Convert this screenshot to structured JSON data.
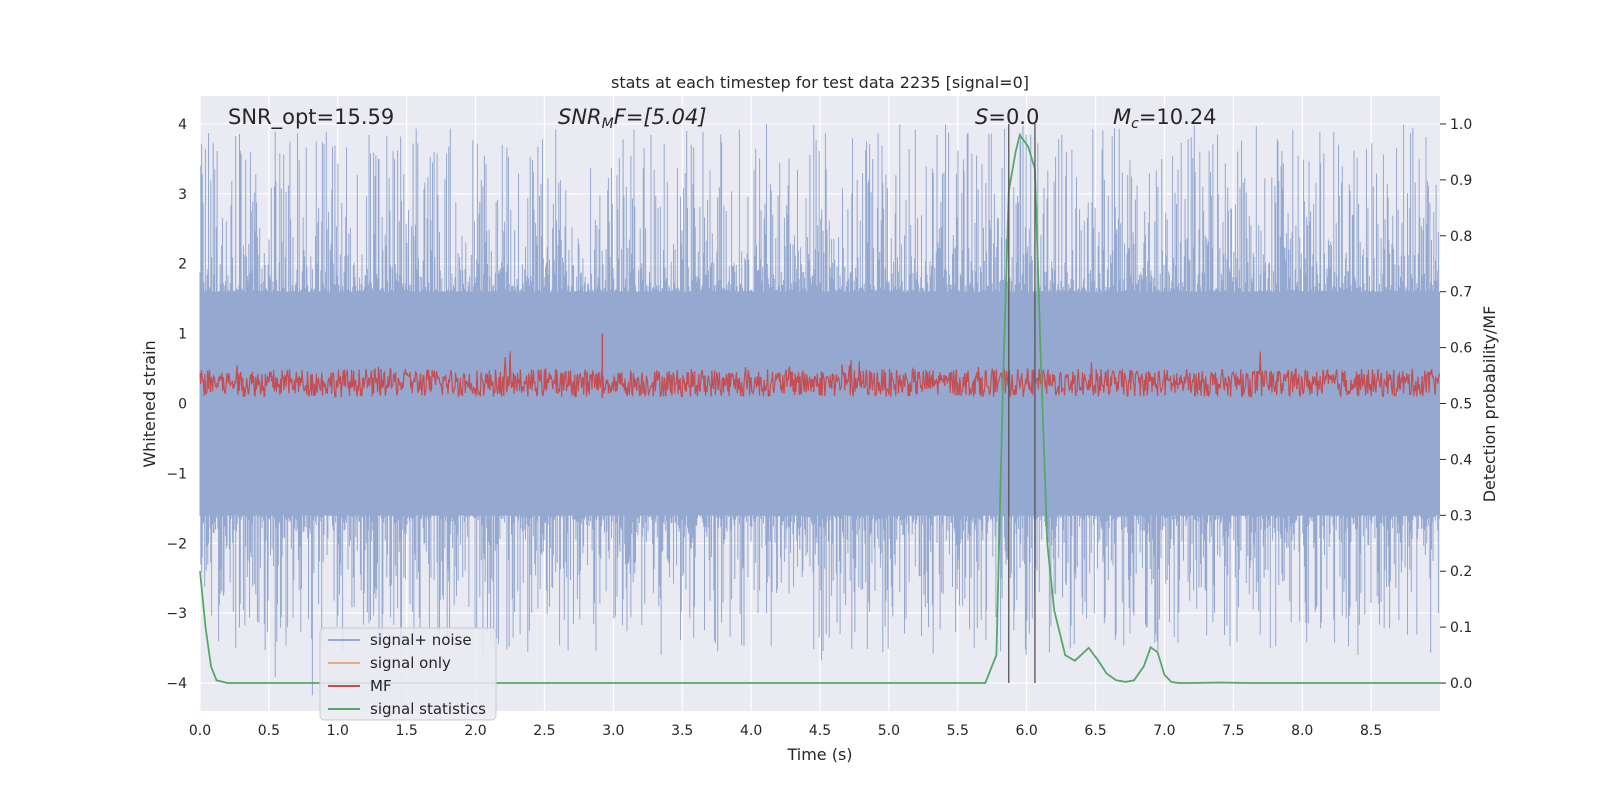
{
  "chart_data": {
    "type": "line",
    "title": "stats at each timestep for test data 2235 [signal=0]",
    "xlabel": "Time (s)",
    "ylabel_left": "Whitened strain",
    "ylabel_right": "Detection probability/MF",
    "xlim": [
      0,
      9.0
    ],
    "ylim_left": [
      -4.4,
      4.4
    ],
    "ylim_right": [
      -0.05,
      1.05
    ],
    "x_ticks": [
      "0.0",
      "0.5",
      "1.0",
      "1.5",
      "2.0",
      "2.5",
      "3.0",
      "3.5",
      "4.0",
      "4.5",
      "5.0",
      "5.5",
      "6.0",
      "6.5",
      "7.0",
      "7.5",
      "8.0",
      "8.5"
    ],
    "x_tick_values": [
      0,
      0.5,
      1,
      1.5,
      2,
      2.5,
      3,
      3.5,
      4,
      4.5,
      5,
      5.5,
      6,
      6.5,
      7,
      7.5,
      8,
      8.5
    ],
    "y_left_ticks": [
      "4",
      "3",
      "2",
      "1",
      "0",
      "−1",
      "−2",
      "−3",
      "−4"
    ],
    "y_left_tick_values": [
      4,
      3,
      2,
      1,
      0,
      -1,
      -2,
      -3,
      -4
    ],
    "y_right_ticks": [
      "1.0",
      "0.9",
      "0.8",
      "0.7",
      "0.6",
      "0.5",
      "0.4",
      "0.3",
      "0.2",
      "0.1",
      "0.0"
    ],
    "y_right_tick_values": [
      1.0,
      0.9,
      0.8,
      0.7,
      0.6,
      0.5,
      0.4,
      0.3,
      0.2,
      0.1,
      0.0
    ],
    "annotations": {
      "snr_opt": "SNR_opt=15.59",
      "snr_mf_base": "SNR",
      "snr_mf_sub": "M",
      "snr_mf_rest": "F=[5.04]",
      "s_italic": "S",
      "s_rest": "=0.0",
      "mc_base": "M",
      "mc_sub": "c",
      "mc_rest": "=10.24"
    },
    "vlines_x": [
      5.87,
      6.06
    ],
    "grid": true,
    "legend_placement": "lower left",
    "series": [
      {
        "name": "signal+ noise",
        "color": "#95a8d0",
        "axis": "left",
        "style": "dense noise band, amplitude ~ ±1.6 typical, peaks to ±4"
      },
      {
        "name": "signal only",
        "color": "#e8a98f",
        "axis": "left",
        "values": []
      },
      {
        "name": "MF",
        "color": "#c44e52",
        "axis": "right",
        "style": "dense band between ~0.5 and ~0.6, peaks to ~0.62"
      },
      {
        "name": "signal statistics",
        "color": "#55a868",
        "axis": "right",
        "x": [
          0.0,
          0.04,
          0.08,
          0.12,
          0.2,
          0.5,
          1.0,
          2.0,
          3.0,
          4.0,
          5.0,
          5.5,
          5.7,
          5.78,
          5.83,
          5.87,
          5.92,
          5.95,
          5.98,
          6.01,
          6.06,
          6.1,
          6.15,
          6.2,
          6.28,
          6.35,
          6.45,
          6.52,
          6.58,
          6.65,
          6.72,
          6.78,
          6.85,
          6.9,
          6.95,
          7.0,
          7.05,
          7.1,
          7.2,
          7.4,
          7.6,
          8.0,
          8.5,
          9.0
        ],
        "y": [
          0.2,
          0.1,
          0.03,
          0.005,
          0.0,
          0.0,
          0.0,
          0.0,
          0.0,
          0.0,
          0.0,
          0.0,
          0.0,
          0.05,
          0.55,
          0.88,
          0.95,
          0.98,
          0.97,
          0.96,
          0.92,
          0.6,
          0.25,
          0.13,
          0.05,
          0.04,
          0.063,
          0.04,
          0.017,
          0.005,
          0.002,
          0.005,
          0.03,
          0.064,
          0.055,
          0.015,
          0.002,
          0.0,
          0.0,
          0.001,
          0.0,
          0.0,
          0.0,
          0.0
        ]
      }
    ]
  }
}
